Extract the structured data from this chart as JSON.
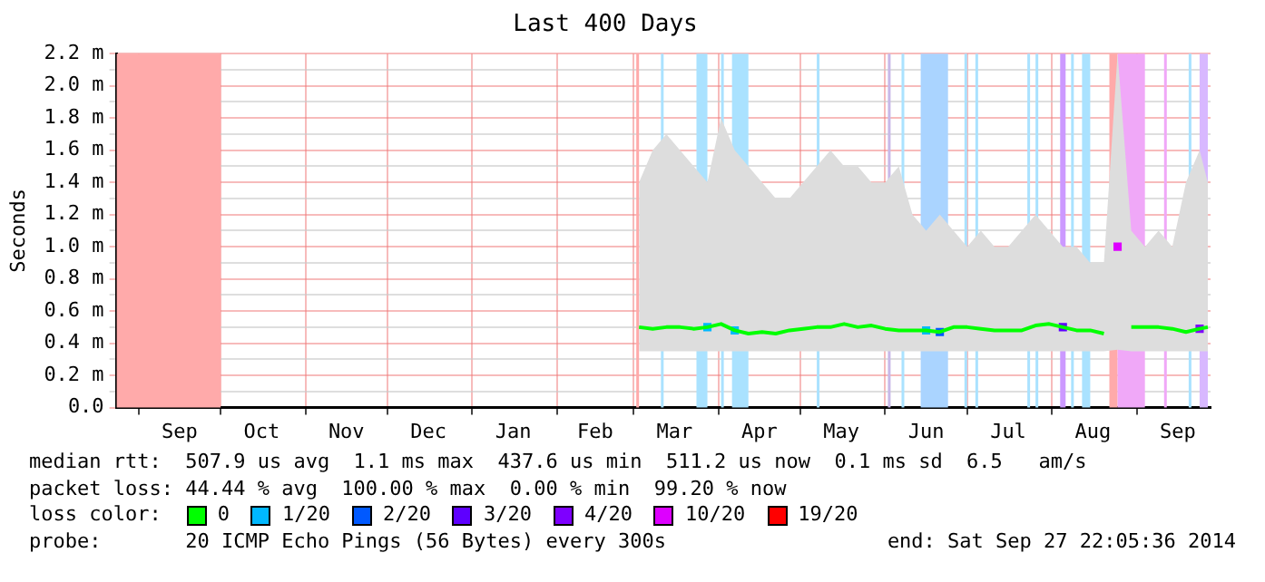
{
  "chart_data": {
    "type": "line",
    "title": "Last 400 Days",
    "ylabel": "Seconds",
    "legend_title": "loss color:",
    "legend": "bottom",
    "grid": true,
    "line_style": "solid",
    "x": [
      "2014-03-03",
      "2014-03-08",
      "2014-03-13",
      "2014-03-18",
      "2014-03-23",
      "2014-03-28",
      "2014-04-02",
      "2014-04-07",
      "2014-04-12",
      "2014-04-17",
      "2014-04-22",
      "2014-04-27",
      "2014-05-02",
      "2014-05-07",
      "2014-05-12",
      "2014-05-17",
      "2014-05-22",
      "2014-05-27",
      "2014-06-01",
      "2014-06-06",
      "2014-06-11",
      "2014-06-16",
      "2014-06-21",
      "2014-06-26",
      "2014-07-01",
      "2014-07-06",
      "2014-07-11",
      "2014-07-16",
      "2014-07-21",
      "2014-07-26",
      "2014-07-31",
      "2014-08-05",
      "2014-08-10",
      "2014-08-15",
      "2014-08-20",
      "2014-08-25",
      "2014-08-30",
      "2014-09-04",
      "2014-09-09",
      "2014-09-14",
      "2014-09-19",
      "2014-09-24",
      "2014-09-27"
    ],
    "series": [
      {
        "name": "0",
        "marker": "none",
        "color": "#00ff00",
        "values": [
          0.5,
          0.49,
          0.5,
          0.5,
          0.49,
          0.5,
          0.52,
          0.48,
          0.46,
          0.47,
          0.46,
          0.48,
          0.49,
          0.5,
          0.5,
          0.52,
          0.5,
          0.51,
          0.49,
          0.48,
          0.48,
          0.48,
          0.47,
          0.5,
          0.5,
          0.49,
          0.48,
          0.48,
          0.48,
          0.51,
          0.52,
          0.5,
          0.48,
          0.48,
          0.46,
          null,
          0.5,
          0.5,
          0.5,
          0.49,
          0.47,
          0.49,
          0.5
        ],
        "lower": [
          0.35,
          0.35,
          0.35,
          0.35,
          0.35,
          0.35,
          0.35,
          0.35,
          0.35,
          0.35,
          0.35,
          0.35,
          0.35,
          0.35,
          0.35,
          0.35,
          0.35,
          0.35,
          0.35,
          0.35,
          0.35,
          0.35,
          0.35,
          0.35,
          0.35,
          0.35,
          0.35,
          0.35,
          0.35,
          0.35,
          0.35,
          0.35,
          0.35,
          0.35,
          0.35,
          0.36,
          0.35,
          0.35,
          0.35,
          0.35,
          0.35,
          0.35,
          0.35
        ],
        "upper": [
          1.4,
          1.6,
          1.7,
          1.6,
          1.5,
          1.4,
          1.8,
          1.6,
          1.5,
          1.4,
          1.3,
          1.3,
          1.4,
          1.5,
          1.6,
          1.5,
          1.5,
          1.4,
          1.4,
          1.5,
          1.2,
          1.1,
          1.2,
          1.1,
          1.0,
          1.1,
          1.0,
          1.0,
          1.1,
          1.2,
          1.1,
          1.0,
          1.0,
          0.9,
          0.9,
          2.2,
          1.1,
          1.0,
          1.1,
          1.0,
          1.4,
          1.6,
          1.4
        ]
      },
      {
        "name": "1/20",
        "type": "scatter",
        "marker": "square",
        "color": "#00b8ff",
        "values": [
          null,
          null,
          null,
          null,
          null,
          0.5,
          null,
          0.48,
          null,
          null,
          null,
          null,
          null,
          null,
          null,
          null,
          null,
          null,
          null,
          null,
          null,
          0.48,
          null,
          null,
          null,
          null,
          null,
          null,
          null,
          null,
          null,
          null,
          null,
          null,
          null,
          null,
          null,
          null,
          null,
          null,
          null,
          null,
          null
        ]
      },
      {
        "name": "2/20",
        "type": "scatter",
        "marker": "square",
        "color": "#0059ff",
        "values": [
          null,
          null,
          null,
          null,
          null,
          null,
          null,
          null,
          null,
          null,
          null,
          null,
          null,
          null,
          null,
          null,
          null,
          null,
          null,
          null,
          null,
          null,
          0.47,
          null,
          null,
          null,
          null,
          null,
          null,
          null,
          null,
          null,
          null,
          null,
          null,
          null,
          null,
          null,
          null,
          null,
          null,
          null,
          null
        ]
      },
      {
        "name": "3/20",
        "type": "scatter",
        "marker": "square",
        "color": "#5e00ff",
        "values": [
          null,
          null,
          null,
          null,
          null,
          null,
          null,
          null,
          null,
          null,
          null,
          null,
          null,
          null,
          null,
          null,
          null,
          null,
          null,
          null,
          null,
          null,
          null,
          null,
          null,
          null,
          null,
          null,
          null,
          null,
          null,
          0.5,
          null,
          null,
          null,
          null,
          null,
          null,
          null,
          null,
          null,
          null,
          null
        ]
      },
      {
        "name": "4/20",
        "type": "scatter",
        "marker": "square",
        "color": "#7e00ff",
        "values": [
          null,
          null,
          null,
          null,
          null,
          null,
          null,
          null,
          null,
          null,
          null,
          null,
          null,
          null,
          null,
          null,
          null,
          null,
          null,
          null,
          null,
          null,
          null,
          null,
          null,
          null,
          null,
          null,
          null,
          null,
          null,
          null,
          null,
          null,
          null,
          null,
          null,
          null,
          null,
          null,
          null,
          0.49,
          null
        ]
      },
      {
        "name": "10/20",
        "type": "scatter",
        "marker": "square",
        "color": "#dd00ff",
        "values": [
          null,
          null,
          null,
          null,
          null,
          null,
          null,
          null,
          null,
          null,
          null,
          null,
          null,
          null,
          null,
          null,
          null,
          null,
          null,
          null,
          null,
          null,
          null,
          null,
          null,
          null,
          null,
          null,
          null,
          null,
          null,
          null,
          null,
          null,
          null,
          1.0,
          null,
          null,
          null,
          null,
          null,
          null,
          null
        ]
      },
      {
        "name": "19/20",
        "type": "scatter",
        "marker": "square",
        "color": "#ff0000",
        "values": [
          null,
          null,
          null,
          null,
          null,
          null,
          null,
          null,
          null,
          null,
          null,
          null,
          null,
          null,
          null,
          null,
          null,
          null,
          null,
          null,
          null,
          null,
          null,
          null,
          null,
          null,
          null,
          null,
          null,
          null,
          null,
          null,
          null,
          null,
          null,
          null,
          null,
          null,
          null,
          null,
          null,
          null,
          null
        ]
      }
    ],
    "xlim": [
      "2013-08-24",
      "2014-09-28"
    ],
    "xticks": [
      {
        "value": "2013-09-01",
        "label": null
      },
      {
        "value": "2013-09-16",
        "label": "Sep"
      },
      {
        "value": "2013-10-01",
        "label": null
      },
      {
        "value": "2013-10-16",
        "label": "Oct"
      },
      {
        "value": "2013-11-01",
        "label": null
      },
      {
        "value": "2013-11-16",
        "label": "Nov"
      },
      {
        "value": "2013-12-01",
        "label": null
      },
      {
        "value": "2013-12-16",
        "label": "Dec"
      },
      {
        "value": "2014-01-01",
        "label": null
      },
      {
        "value": "2014-01-16",
        "label": "Jan"
      },
      {
        "value": "2014-02-01",
        "label": null
      },
      {
        "value": "2014-02-15",
        "label": "Feb"
      },
      {
        "value": "2014-03-01",
        "label": null
      },
      {
        "value": "2014-03-16",
        "label": "Mar"
      },
      {
        "value": "2014-04-01",
        "label": null
      },
      {
        "value": "2014-04-16",
        "label": "Apr"
      },
      {
        "value": "2014-05-01",
        "label": null
      },
      {
        "value": "2014-05-16",
        "label": "May"
      },
      {
        "value": "2014-06-01",
        "label": null
      },
      {
        "value": "2014-06-16",
        "label": "Jun"
      },
      {
        "value": "2014-07-01",
        "label": null
      },
      {
        "value": "2014-07-16",
        "label": "Jul"
      },
      {
        "value": "2014-08-01",
        "label": null
      },
      {
        "value": "2014-08-16",
        "label": "Aug"
      },
      {
        "value": "2014-09-01",
        "label": null
      },
      {
        "value": "2014-09-16",
        "label": "Sep"
      }
    ],
    "ylim": [
      0,
      2.2
    ],
    "yticks": [
      {
        "value": 0,
        "label": "0.0"
      },
      {
        "value": 0.1,
        "label": null
      },
      {
        "value": 0.2,
        "label": "0.2 m"
      },
      {
        "value": 0.3,
        "label": null
      },
      {
        "value": 0.4,
        "label": "0.4 m"
      },
      {
        "value": 0.5,
        "label": null
      },
      {
        "value": 0.6,
        "label": "0.6 m"
      },
      {
        "value": 0.7,
        "label": null
      },
      {
        "value": 0.8,
        "label": "0.8 m"
      },
      {
        "value": 0.9,
        "label": null
      },
      {
        "value": 1.0,
        "label": "1.0 m"
      },
      {
        "value": 1.1,
        "label": null
      },
      {
        "value": 1.2,
        "label": "1.2 m"
      },
      {
        "value": 1.3,
        "label": null
      },
      {
        "value": 1.4,
        "label": "1.4 m"
      },
      {
        "value": 1.5,
        "label": null
      },
      {
        "value": 1.6,
        "label": "1.6 m"
      },
      {
        "value": 1.7,
        "label": null
      },
      {
        "value": 1.8,
        "label": "1.8 m"
      },
      {
        "value": 1.9,
        "label": null
      },
      {
        "value": 2.0,
        "label": "2.0 m"
      },
      {
        "value": 2.1,
        "label": null
      },
      {
        "value": 2.2,
        "label": "2.2 m"
      }
    ],
    "bands": [
      {
        "axis": "x",
        "from": "2013-08-24",
        "to": "2013-10-01",
        "color": "#ffaaaa"
      },
      {
        "axis": "x",
        "from": "2014-03-02",
        "to": "2014-03-03",
        "color": "#ffaaaa"
      },
      {
        "axis": "x",
        "from": "2014-03-11",
        "to": "2014-03-12",
        "color": "#aae2ff"
      },
      {
        "axis": "x",
        "from": "2014-03-24",
        "to": "2014-03-28",
        "color": "#aae2ff"
      },
      {
        "axis": "x",
        "from": "2014-04-02",
        "to": "2014-04-03",
        "color": "#aae2ff"
      },
      {
        "axis": "x",
        "from": "2014-04-06",
        "to": "2014-04-12",
        "color": "#aae2ff"
      },
      {
        "axis": "x",
        "from": "2014-05-07",
        "to": "2014-05-08",
        "color": "#aae2ff"
      },
      {
        "axis": "x",
        "from": "2014-06-02",
        "to": "2014-06-03",
        "color": "#c8b8e8"
      },
      {
        "axis": "x",
        "from": "2014-06-07",
        "to": "2014-06-08",
        "color": "#aae2ff"
      },
      {
        "axis": "x",
        "from": "2014-06-14",
        "to": "2014-06-24",
        "color": "#aad4ff"
      },
      {
        "axis": "x",
        "from": "2014-06-30",
        "to": "2014-07-01",
        "color": "#aae2ff"
      },
      {
        "axis": "x",
        "from": "2014-07-04",
        "to": "2014-07-05",
        "color": "#aae2ff"
      },
      {
        "axis": "x",
        "from": "2014-07-23",
        "to": "2014-07-24",
        "color": "#aae2ff"
      },
      {
        "axis": "x",
        "from": "2014-07-26",
        "to": "2014-07-27",
        "color": "#aae2ff"
      },
      {
        "axis": "x",
        "from": "2014-08-04",
        "to": "2014-08-06",
        "color": "#cc99ff"
      },
      {
        "axis": "x",
        "from": "2014-08-08",
        "to": "2014-08-09",
        "color": "#aae2ff"
      },
      {
        "axis": "x",
        "from": "2014-08-12",
        "to": "2014-08-15",
        "color": "#aae2ff"
      },
      {
        "axis": "x",
        "from": "2014-08-22",
        "to": "2014-08-25",
        "color": "#ffaaaa"
      },
      {
        "axis": "x",
        "from": "2014-08-25",
        "to": "2014-09-04",
        "color": "#f0a8f8"
      },
      {
        "axis": "x",
        "from": "2014-09-11",
        "to": "2014-09-12",
        "color": "#f0a8f8"
      },
      {
        "axis": "x",
        "from": "2014-09-20",
        "to": "2014-09-21",
        "color": "#aae2ff"
      },
      {
        "axis": "x",
        "from": "2014-09-24",
        "to": "2014-09-27",
        "color": "#d8b8ff"
      }
    ],
    "annotations": [
      "median rtt:  507.9 us avg  1.1 ms max  437.6 us min  511.2 us now  0.1 ms sd  6.5   am/s",
      "packet loss: 44.44 % avg  100.00 % max  0.00 % min  99.20 % now",
      "probe:       20 ICMP Echo Pings (56 Bytes) every 300s",
      "end: Sat Sep 27 22:05:36 2014"
    ]
  }
}
